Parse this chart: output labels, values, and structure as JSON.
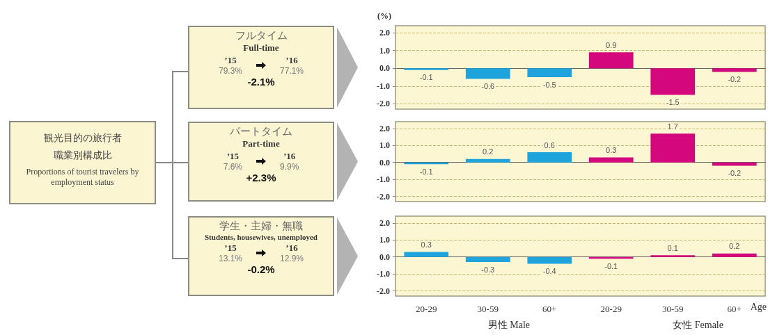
{
  "chart_data": [
    {
      "type": "other",
      "title": "観光目的の旅行者職業別構成比",
      "subtitle": "Proportions of tourist travelers by employment status"
    },
    {
      "type": "other",
      "title": "フルタイム",
      "subtitle": "Full-time",
      "annotations": [
        "’15",
        "79.3%",
        "’16",
        "77.1%",
        "-2.1%"
      ]
    },
    {
      "type": "bar",
      "ylabel": "(%)",
      "categories": [
        null,
        null,
        null,
        null,
        null,
        null
      ],
      "values": [
        -0.1,
        -0.6,
        -0.5,
        0.9,
        -1.5,
        -0.2
      ],
      "colors": [
        "#1fa3dc",
        "#1fa3dc",
        "#1fa3dc",
        "#d4087c",
        "#d4087c",
        "#d4087c"
      ],
      "data_labels": true,
      "grid": "y",
      "tick_labels": "y",
      "ylim": [
        -2.3,
        2.4
      ],
      "yticks": [
        {
          "value": -2,
          "label": "-2.0"
        },
        {
          "value": -1,
          "label": "-1.0"
        },
        {
          "value": 0,
          "label": "0.0"
        },
        {
          "value": 1,
          "label": "1.0"
        },
        {
          "value": 2,
          "label": "2.0"
        }
      ]
    },
    {
      "type": "other",
      "title": "パートタイム",
      "subtitle": "Part-time",
      "annotations": [
        "’15",
        "7.6%",
        "’16",
        "9.9%",
        "+2.3%"
      ]
    },
    {
      "type": "bar",
      "categories": [
        null,
        null,
        null,
        null,
        null,
        null
      ],
      "values": [
        -0.1,
        0.2,
        0.6,
        0.3,
        1.7,
        -0.2
      ],
      "colors": [
        "#1fa3dc",
        "#1fa3dc",
        "#1fa3dc",
        "#d4087c",
        "#d4087c",
        "#d4087c"
      ],
      "data_labels": true,
      "grid": "y",
      "tick_labels": "y",
      "ylim": [
        -2.3,
        2.4
      ],
      "yticks": [
        {
          "value": -2,
          "label": "-2.0"
        },
        {
          "value": -1,
          "label": "-1.0"
        },
        {
          "value": 0,
          "label": "0.0"
        },
        {
          "value": 1,
          "label": "1.0"
        },
        {
          "value": 2,
          "label": "2.0"
        }
      ]
    },
    {
      "type": "other",
      "title": "学生・主婦・無職",
      "subtitle": "Students, housewives, unemployed",
      "annotations": [
        "’15",
        "13.1%",
        "’16",
        "12.9%",
        "-0.2%"
      ]
    },
    {
      "type": "bar",
      "annotations": [
        "男性 Male",
        "女性 Female"
      ],
      "xlabel": "Age",
      "categories": [
        "20-29",
        "30-59",
        "60+",
        "20-29",
        "30-59",
        "60+"
      ],
      "values": [
        0.3,
        -0.3,
        -0.4,
        -0.1,
        0.1,
        0.2
      ],
      "colors": [
        "#1fa3dc",
        "#1fa3dc",
        "#1fa3dc",
        "#d4087c",
        "#d4087c",
        "#d4087c"
      ],
      "data_labels": true,
      "grid": "y",
      "ylim": [
        -2.3,
        2.4
      ],
      "yticks": [
        {
          "value": -2,
          "label": "-2.0"
        },
        {
          "value": -1,
          "label": "-1.0"
        },
        {
          "value": 0,
          "label": "0.0"
        },
        {
          "value": 1,
          "label": "1.0"
        },
        {
          "value": 2,
          "label": "2.0"
        }
      ]
    }
  ]
}
